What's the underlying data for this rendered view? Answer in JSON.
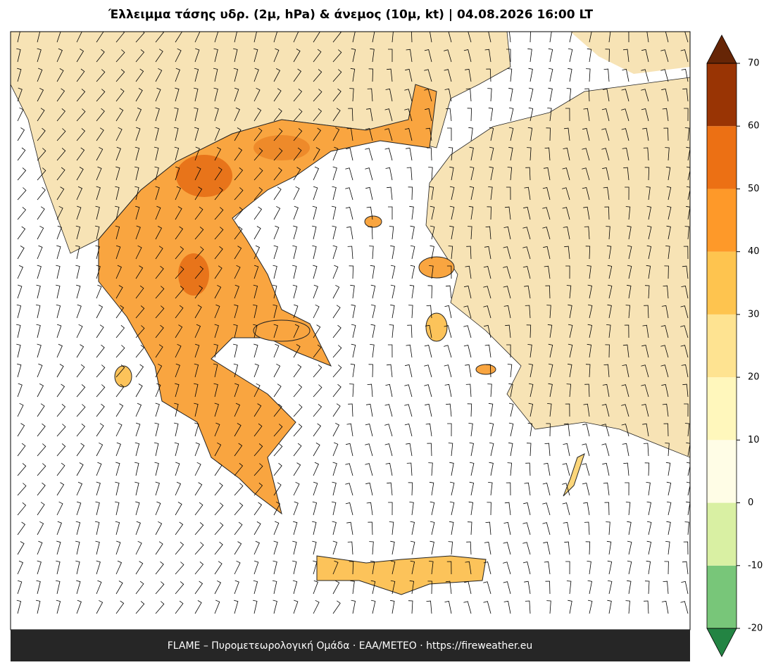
{
  "title": "Έλλειμμα τάσης υδρ. (2μ, hPa) & άνεμος (10μ, kt)  |  04.08.2026 16:00 LT",
  "footer": "FLAME – Πυρομετεωρολογική Ομάδα · ΕΑΑ/METEO · https://fireweather.eu",
  "colorbar": {
    "ticks": [
      -20,
      -10,
      0,
      10,
      20,
      30,
      40,
      50,
      60,
      70
    ],
    "colors": [
      "#78c679",
      "#d9f0a3",
      "#fffde6",
      "#fff7bc",
      "#fee391",
      "#fec44f",
      "#fe9929",
      "#ec7014",
      "#993404"
    ],
    "under_color": "#238443",
    "over_color": "#662506"
  }
}
